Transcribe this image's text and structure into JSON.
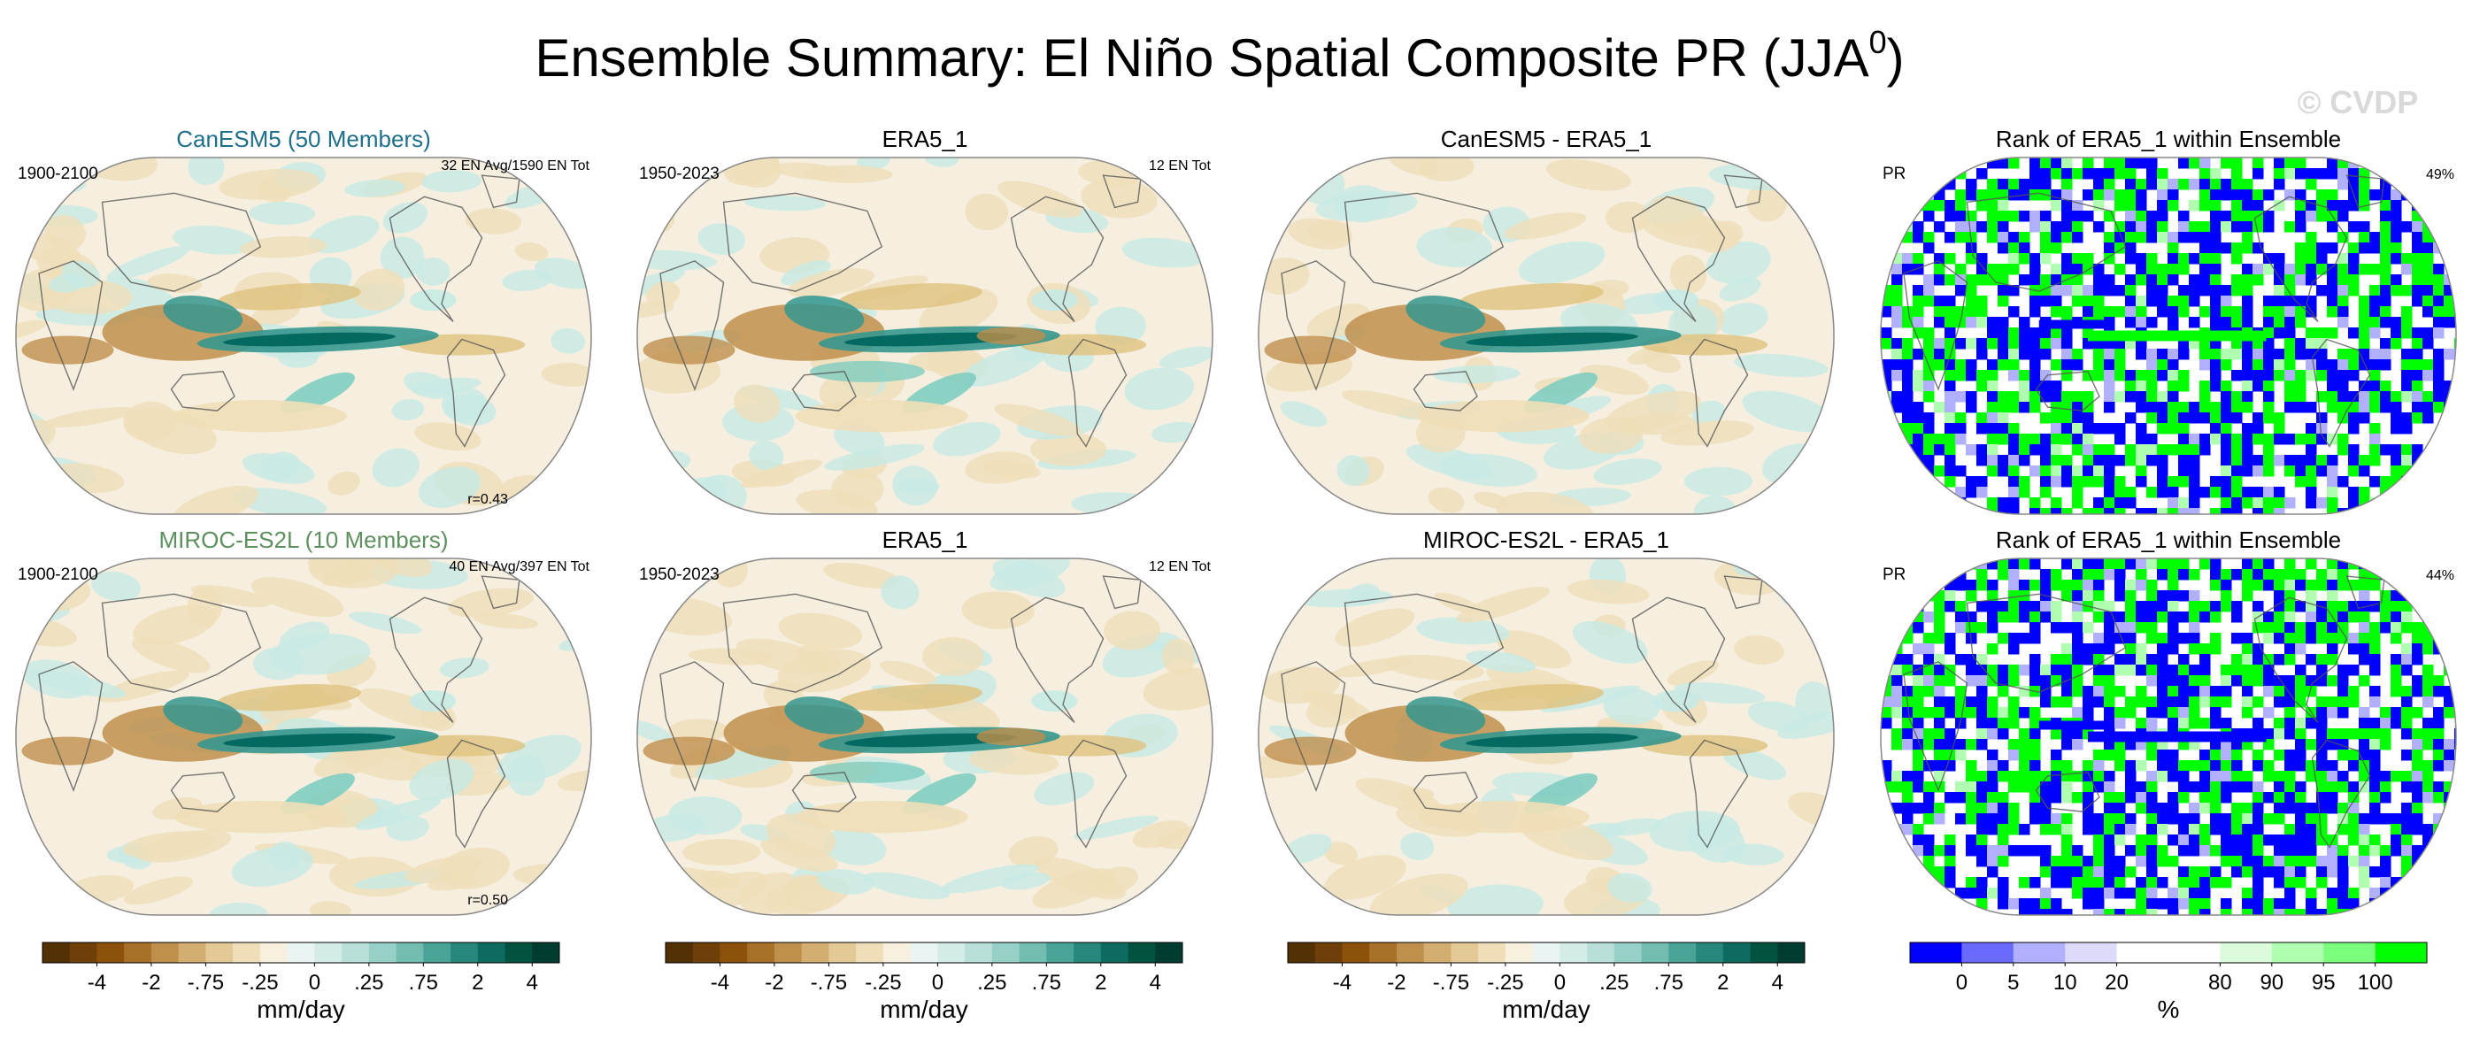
{
  "title": "Ensemble Summary: El Niño Spatial Composite PR (JJA",
  "title_superscript": "0",
  "title_close": ")",
  "watermark": "© CVDP",
  "colors": {
    "land_outline": "#555555",
    "map_border": "#888888",
    "title_model_1": "#1f6f8b",
    "title_model_2": "#5e8f5e"
  },
  "chart_data": [
    {
      "type": "heatmap",
      "title": "CanESM5 (50 Members)",
      "title_color": "#1f6f8b",
      "left_label": "1900-2100",
      "right_label": "32 EN Avg/1590 EN Tot",
      "bottom_label": "r=0.43",
      "variable": "PR",
      "projection": "robinson",
      "colorscale": "precip_diverging"
    },
    {
      "type": "heatmap",
      "title": "ERA5_1",
      "left_label": "1950-2023",
      "right_label": "12 EN Tot",
      "variable": "PR",
      "projection": "robinson",
      "colorscale": "precip_diverging"
    },
    {
      "type": "heatmap",
      "title": "CanESM5 - ERA5_1",
      "variable": "PR",
      "projection": "robinson",
      "colorscale": "precip_diverging"
    },
    {
      "type": "heatmap",
      "title": "Rank of ERA5_1 within Ensemble",
      "left_label": "PR",
      "right_label": "49%",
      "projection": "robinson",
      "colorscale": "rank"
    },
    {
      "type": "heatmap",
      "title": "MIROC-ES2L (10 Members)",
      "title_color": "#5e8f5e",
      "left_label": "1900-2100",
      "right_label": "40 EN Avg/397 EN Tot",
      "bottom_label": "r=0.50",
      "variable": "PR",
      "projection": "robinson",
      "colorscale": "precip_diverging"
    },
    {
      "type": "heatmap",
      "title": "ERA5_1",
      "left_label": "1950-2023",
      "right_label": "12 EN Tot",
      "variable": "PR",
      "projection": "robinson",
      "colorscale": "precip_diverging"
    },
    {
      "type": "heatmap",
      "title": "MIROC-ES2L - ERA5_1",
      "variable": "PR",
      "projection": "robinson",
      "colorscale": "precip_diverging"
    },
    {
      "type": "heatmap",
      "title": "Rank of ERA5_1 within Ensemble",
      "left_label": "PR",
      "right_label": "44%",
      "projection": "robinson",
      "colorscale": "rank"
    }
  ],
  "colorbars": [
    {
      "units": "mm/day",
      "colors": [
        "#543005",
        "#6f3f0a",
        "#8c510a",
        "#a8712a",
        "#bf8f4c",
        "#d3ae70",
        "#e2c995",
        "#efdeb8",
        "#f7f0df",
        "#eaf5f3",
        "#d4ece8",
        "#b8e0d9",
        "#97d0c6",
        "#72bcb0",
        "#4aa397",
        "#27877c",
        "#0e6b61",
        "#01523f",
        "#003c30"
      ],
      "tick_labels": [
        "-4",
        "-2",
        "-.75",
        "-.25",
        "0",
        ".25",
        ".75",
        "2",
        "4"
      ],
      "tick_boundaries": [
        2,
        4,
        6,
        8,
        10,
        12,
        14,
        16,
        18
      ]
    },
    {
      "units": "mm/day",
      "colors": [
        "#543005",
        "#6f3f0a",
        "#8c510a",
        "#a8712a",
        "#bf8f4c",
        "#d3ae70",
        "#e2c995",
        "#efdeb8",
        "#f7f0df",
        "#eaf5f3",
        "#d4ece8",
        "#b8e0d9",
        "#97d0c6",
        "#72bcb0",
        "#4aa397",
        "#27877c",
        "#0e6b61",
        "#01523f",
        "#003c30"
      ],
      "tick_labels": [
        "-4",
        "-2",
        "-.75",
        "-.25",
        "0",
        ".25",
        ".75",
        "2",
        "4"
      ],
      "tick_boundaries": [
        2,
        4,
        6,
        8,
        10,
        12,
        14,
        16,
        18
      ]
    },
    {
      "units": "mm/day",
      "colors": [
        "#543005",
        "#6f3f0a",
        "#8c510a",
        "#a8712a",
        "#bf8f4c",
        "#d3ae70",
        "#e2c995",
        "#efdeb8",
        "#f7f0df",
        "#eaf5f3",
        "#d4ece8",
        "#b8e0d9",
        "#97d0c6",
        "#72bcb0",
        "#4aa397",
        "#27877c",
        "#0e6b61",
        "#01523f",
        "#003c30"
      ],
      "tick_labels": [
        "-4",
        "-2",
        "-.75",
        "-.25",
        "0",
        ".25",
        ".75",
        "2",
        "4"
      ],
      "tick_boundaries": [
        2,
        4,
        6,
        8,
        10,
        12,
        14,
        16,
        18
      ]
    },
    {
      "units": "%",
      "colors": [
        "#0000ff",
        "#6a6aff",
        "#b0b0ff",
        "#dcdcfa",
        "#ffffff",
        "#ffffff",
        "#dcfadc",
        "#b0ffb0",
        "#7cff7c",
        "#00ff00"
      ],
      "tick_labels": [
        "0",
        "5",
        "10",
        "20",
        "80",
        "90",
        "95",
        "100"
      ],
      "tick_boundaries": [
        1,
        2,
        3,
        4,
        6,
        7,
        8,
        9
      ]
    }
  ]
}
